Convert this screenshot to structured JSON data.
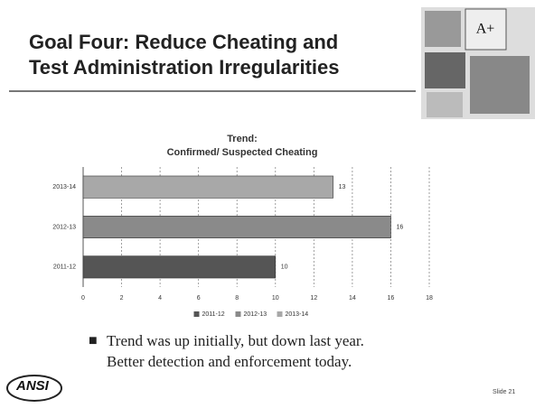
{
  "slide": {
    "title_lines": [
      "Goal Four: Reduce Cheating and",
      "Test Administration Irregularities"
    ],
    "bullet_lines": [
      "Trend was up initially, but down last year.",
      "Better detection and enforcement today."
    ],
    "logo": "ANSI",
    "slide_number": "Slide 21"
  },
  "chart_data": {
    "type": "hbar",
    "title_lines": [
      "Trend:",
      "Confirmed/ Suspected Cheating"
    ],
    "categories": [
      "2011-12",
      "2012-13",
      "2013-14"
    ],
    "values": [
      10,
      16,
      13
    ],
    "colors": [
      "#555555",
      "#8a8a8a",
      "#a8a8a8"
    ],
    "xlim": [
      0,
      18
    ],
    "xticks": [
      0,
      2,
      4,
      6,
      8,
      10,
      12,
      14,
      16,
      18
    ],
    "grid": true,
    "legend": "bottom"
  }
}
